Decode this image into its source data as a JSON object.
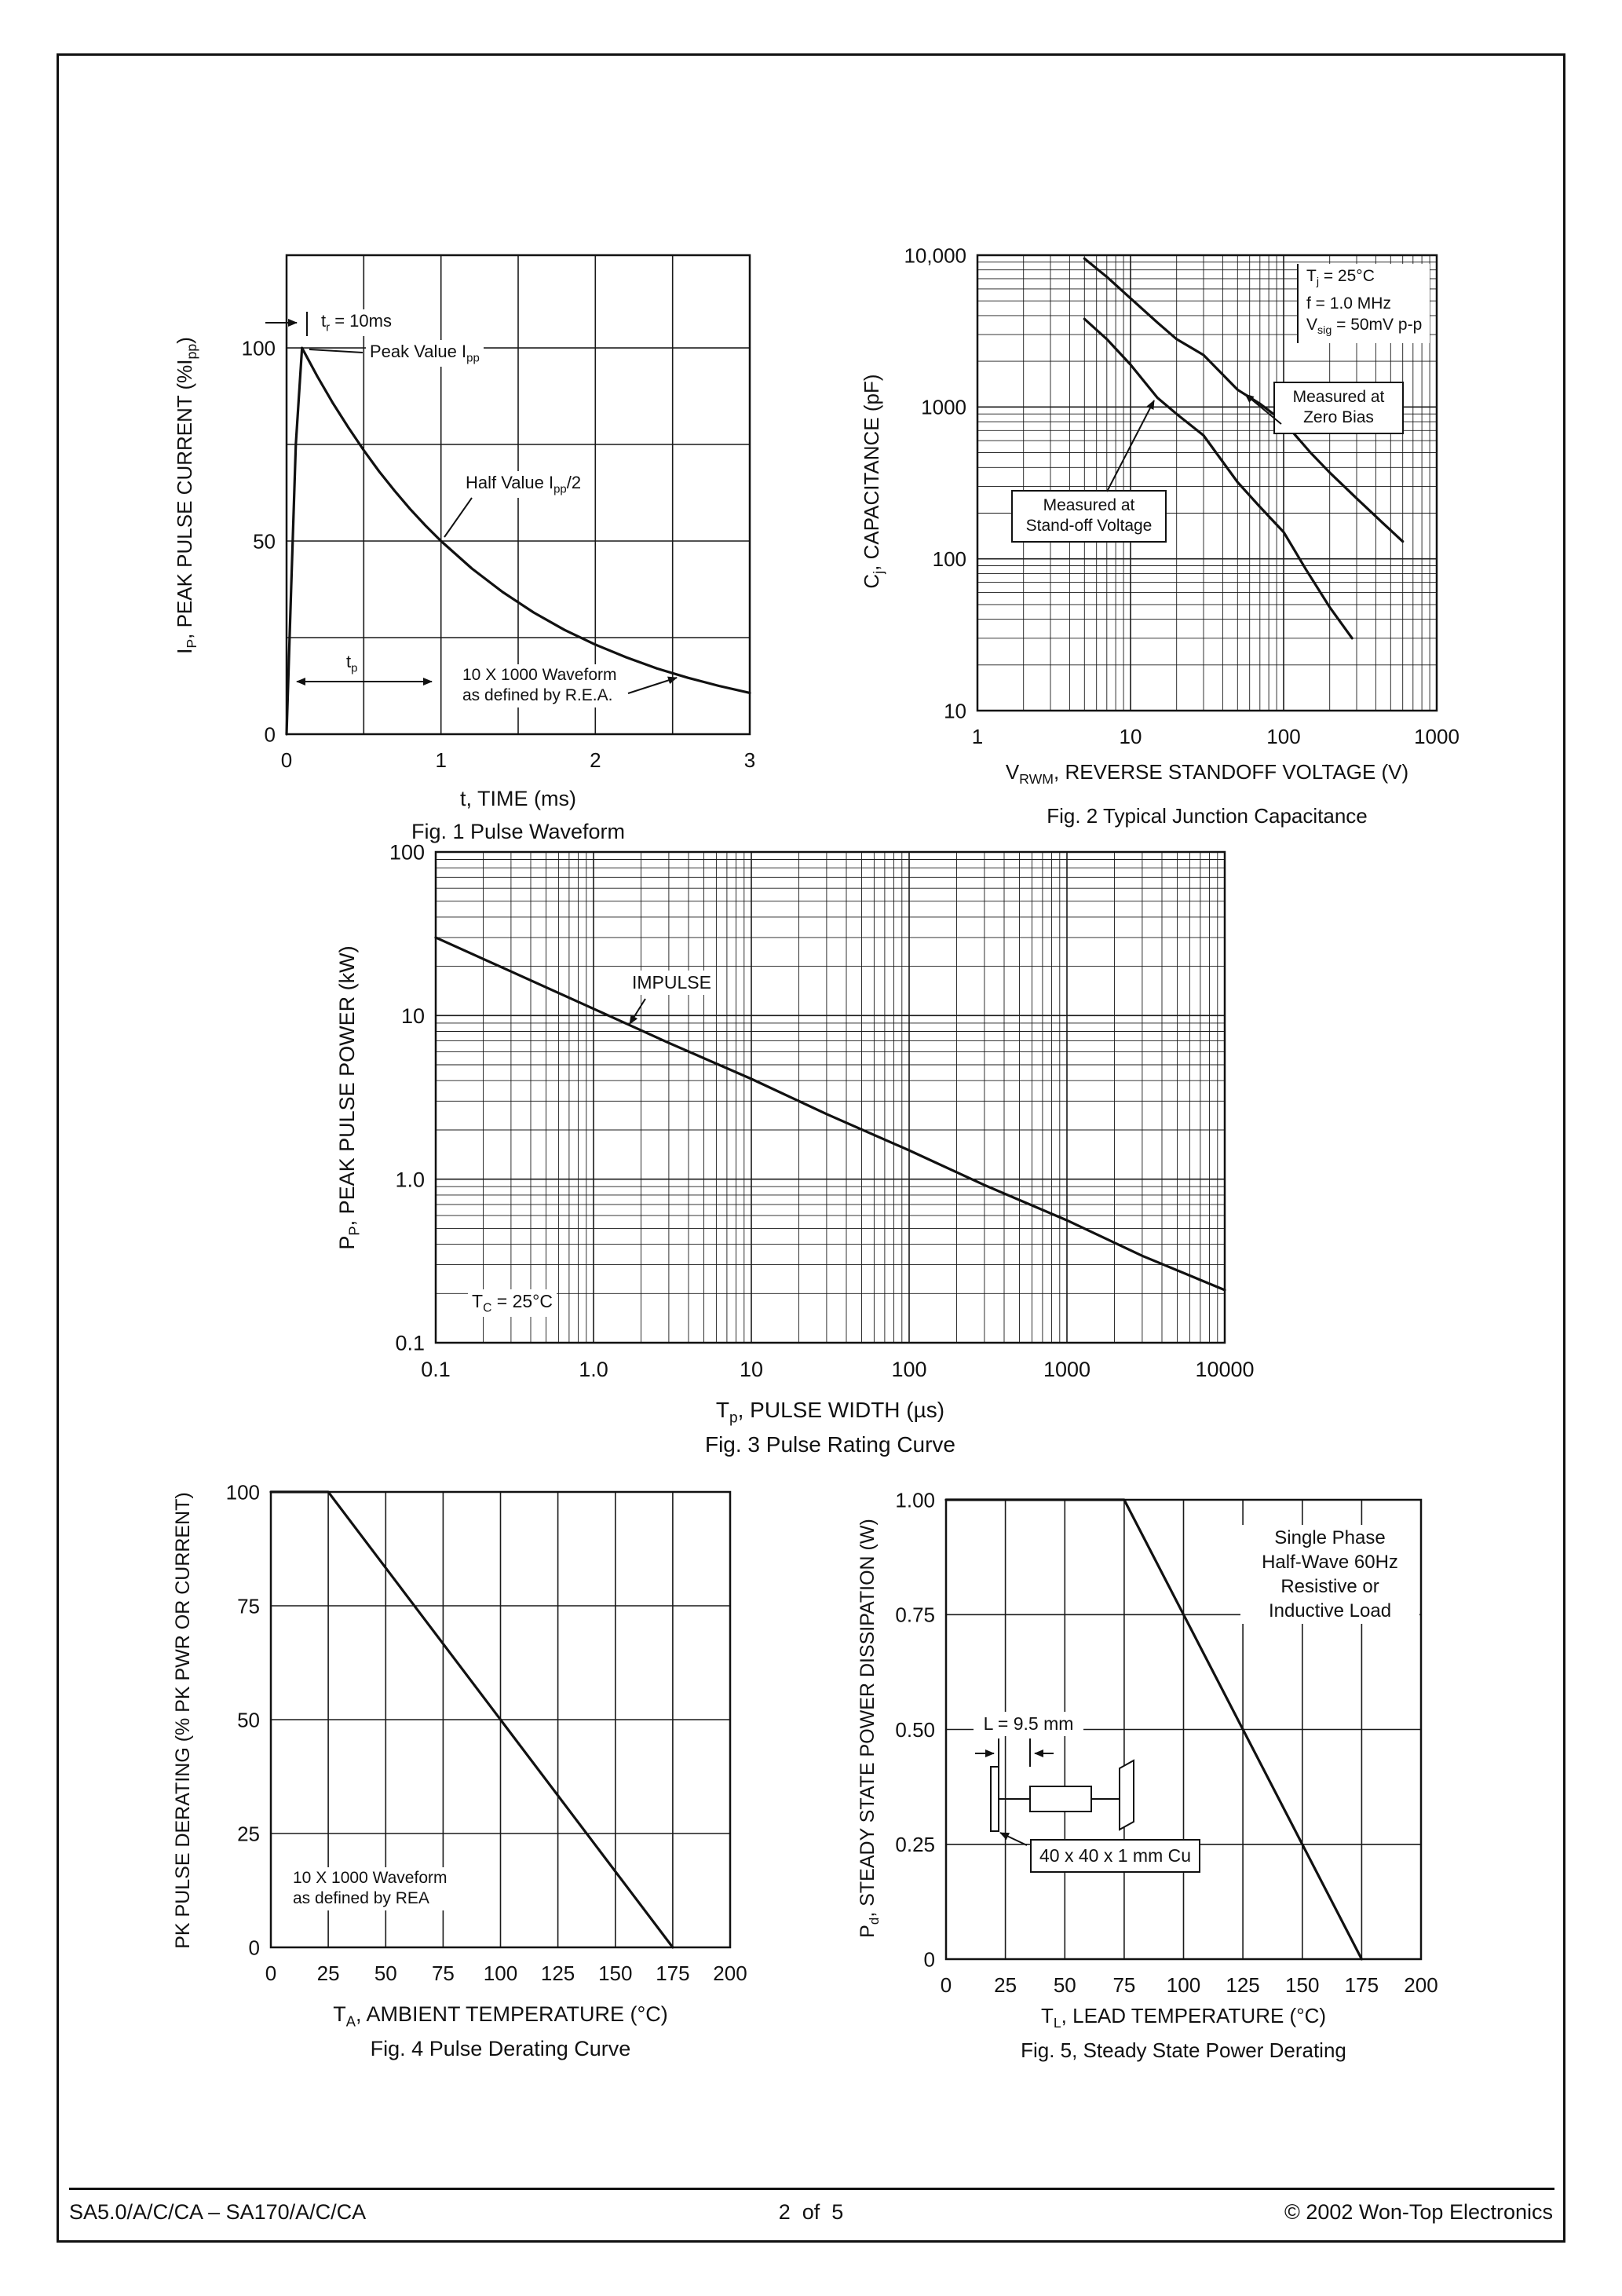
{
  "footer": {
    "left": "SA5.0/A/C/CA – SA170/A/C/CA",
    "center": "2  of  5",
    "right": "© 2002 Won-Top Electronics"
  },
  "chart_data": [
    {
      "id": "pulse-waveform",
      "type": "line",
      "title": "Fig. 1  Pulse Waveform",
      "xlabel": "t, TIME (ms)",
      "ylabel": "I_{P}, PEAK PULSE CURRENT (%I_{pp})",
      "xscale": "linear",
      "yscale": "linear",
      "xlim": [
        0,
        3
      ],
      "ylim": [
        0,
        124
      ],
      "grid": true,
      "legend": "none",
      "xticks": [
        {
          "v": 0,
          "t": "0"
        },
        {
          "v": 1,
          "t": "1"
        },
        {
          "v": 2,
          "t": "2"
        },
        {
          "v": 3,
          "t": "3"
        }
      ],
      "yticks": [
        {
          "v": 0,
          "t": "0"
        },
        {
          "v": 50,
          "t": "50"
        },
        {
          "v": 100,
          "t": "100"
        }
      ],
      "xgrid": [
        0.5,
        1,
        1.5,
        2,
        2.5
      ],
      "ygrid": [
        25,
        50,
        75,
        100
      ],
      "series": [
        {
          "name": "10x1000-pulse",
          "points": [
            [
              0,
              0
            ],
            [
              0.03,
              38
            ],
            [
              0.06,
              75
            ],
            [
              0.1,
              100
            ],
            [
              0.2,
              92.6
            ],
            [
              0.3,
              85.7
            ],
            [
              0.4,
              79.4
            ],
            [
              0.5,
              73.5
            ],
            [
              0.6,
              68
            ],
            [
              0.7,
              63
            ],
            [
              0.8,
              58.3
            ],
            [
              0.9,
              54
            ],
            [
              1,
              50
            ],
            [
              1.2,
              42.9
            ],
            [
              1.4,
              36.8
            ],
            [
              1.6,
              31.5
            ],
            [
              1.8,
              27
            ],
            [
              2,
              23.2
            ],
            [
              2.2,
              19.9
            ],
            [
              2.4,
              17
            ],
            [
              2.6,
              14.6
            ],
            [
              2.8,
              12.5
            ],
            [
              3,
              10.7
            ]
          ]
        }
      ],
      "annotations": {
        "tr": "t_{r} = 10ms",
        "peak": "Peak Value I_{pp}",
        "half": "Half Value I_{pp}/2",
        "tp": "t_{p}",
        "rea": "10 X 1000 Waveform\nas defined by R.E.A."
      }
    },
    {
      "id": "junction-capacitance",
      "type": "line",
      "title": "Fig. 2 Typical Junction Capacitance",
      "xlabel": "V_{RWM}, REVERSE STANDOFF VOLTAGE (V)",
      "ylabel": "C_{j}, CAPACITANCE (pF)",
      "xscale": "log",
      "yscale": "log",
      "xlim": [
        1,
        1000
      ],
      "ylim": [
        10,
        10000
      ],
      "grid": true,
      "legend": "inline-callouts",
      "xticks": [
        {
          "v": 1,
          "t": "1"
        },
        {
          "v": 10,
          "t": "10"
        },
        {
          "v": 100,
          "t": "100"
        },
        {
          "v": 1000,
          "t": "1000"
        }
      ],
      "yticks": [
        {
          "v": 10,
          "t": "10"
        },
        {
          "v": 100,
          "t": "100"
        },
        {
          "v": 1000,
          "t": "1000"
        },
        {
          "v": 10000,
          "t": "10,000"
        }
      ],
      "series": [
        {
          "name": "measured-at-zero-bias",
          "points": [
            [
              5,
              9500
            ],
            [
              7,
              7200
            ],
            [
              10,
              5200
            ],
            [
              15,
              3600
            ],
            [
              20,
              2800
            ],
            [
              30,
              2200
            ],
            [
              50,
              1300
            ],
            [
              70,
              1050
            ],
            [
              100,
              800
            ],
            [
              150,
              500
            ],
            [
              200,
              370
            ],
            [
              300,
              250
            ],
            [
              450,
              170
            ],
            [
              600,
              130
            ]
          ]
        },
        {
          "name": "measured-at-standoff-voltage",
          "points": [
            [
              5,
              3800
            ],
            [
              7,
              2800
            ],
            [
              10,
              1900
            ],
            [
              15,
              1150
            ],
            [
              20,
              900
            ],
            [
              30,
              650
            ],
            [
              50,
              320
            ],
            [
              70,
              220
            ],
            [
              100,
              150
            ],
            [
              140,
              85
            ],
            [
              200,
              48
            ],
            [
              280,
              30
            ]
          ]
        }
      ],
      "conditions": [
        "T_{j} = 25°C",
        "f = 1.0 MHz",
        "V_{sig} = 50mV p-p"
      ],
      "annotations": {
        "zero_bias": "Measured at\nZero Bias",
        "standoff": "Measured at\nStand-off Voltage"
      }
    },
    {
      "id": "pulse-rating",
      "type": "line",
      "title": "Fig. 3 Pulse Rating Curve",
      "xlabel": "T_{p}, PULSE WIDTH (µs)",
      "ylabel": "P_{P}, PEAK PULSE POWER (kW)",
      "xscale": "log",
      "yscale": "log",
      "xlim": [
        0.1,
        10000
      ],
      "ylim": [
        0.1,
        100
      ],
      "grid": true,
      "legend": "none",
      "xticks": [
        {
          "v": 0.1,
          "t": "0.1"
        },
        {
          "v": 1,
          "t": "1.0"
        },
        {
          "v": 10,
          "t": "10"
        },
        {
          "v": 100,
          "t": "100"
        },
        {
          "v": 1000,
          "t": "1000"
        },
        {
          "v": 10000,
          "t": "10000"
        }
      ],
      "yticks": [
        {
          "v": 0.1,
          "t": "0.1"
        },
        {
          "v": 1,
          "t": "1.0"
        },
        {
          "v": 10,
          "t": "10"
        },
        {
          "v": 100,
          "t": "100"
        }
      ],
      "series": [
        {
          "name": "impulse",
          "points": [
            [
              0.1,
              30
            ],
            [
              0.3,
              18.6
            ],
            [
              1,
              11
            ],
            [
              3,
              6.8
            ],
            [
              10,
              4.1
            ],
            [
              30,
              2.5
            ],
            [
              100,
              1.5
            ],
            [
              300,
              0.92
            ],
            [
              1000,
              0.56
            ],
            [
              3000,
              0.34
            ],
            [
              10000,
              0.21
            ]
          ]
        }
      ],
      "annotations": {
        "impulse": "IMPULSE",
        "tc": "T_{C} = 25°C"
      }
    },
    {
      "id": "pulse-derating",
      "type": "line",
      "title": "Fig. 4  Pulse Derating Curve",
      "xlabel": "T_{A}, AMBIENT TEMPERATURE (°C)",
      "ylabel": "PK PULSE DERATING (% PK PWR OR CURRENT)",
      "xscale": "linear",
      "yscale": "linear",
      "xlim": [
        0,
        200
      ],
      "ylim": [
        0,
        100
      ],
      "grid": true,
      "legend": "none",
      "xticks": [
        {
          "v": 0,
          "t": "0"
        },
        {
          "v": 25,
          "t": "25"
        },
        {
          "v": 50,
          "t": "50"
        },
        {
          "v": 75,
          "t": "75"
        },
        {
          "v": 100,
          "t": "100"
        },
        {
          "v": 125,
          "t": "125"
        },
        {
          "v": 150,
          "t": "150"
        },
        {
          "v": 175,
          "t": "175"
        },
        {
          "v": 200,
          "t": "200"
        }
      ],
      "yticks": [
        {
          "v": 0,
          "t": "0"
        },
        {
          "v": 25,
          "t": "25"
        },
        {
          "v": 50,
          "t": "50"
        },
        {
          "v": 75,
          "t": "75"
        },
        {
          "v": 100,
          "t": "100"
        }
      ],
      "xgrid": [
        25,
        50,
        75,
        100,
        125,
        150,
        175
      ],
      "ygrid": [
        25,
        50,
        75
      ],
      "series": [
        {
          "name": "peak-pulse-derating",
          "points": [
            [
              0,
              100
            ],
            [
              25,
              100
            ],
            [
              175,
              0
            ]
          ]
        }
      ],
      "annotations": {
        "rea": "10 X 1000 Waveform\nas defined by REA"
      }
    },
    {
      "id": "steady-state-derating",
      "type": "line",
      "title": "Fig. 5, Steady State Power Derating",
      "xlabel": "T_{L}, LEAD TEMPERATURE (°C)",
      "ylabel": "P_{d}, STEADY STATE POWER DISSIPATION (W)",
      "xscale": "linear",
      "yscale": "linear",
      "xlim": [
        0,
        200
      ],
      "ylim": [
        0,
        1
      ],
      "grid": true,
      "legend": "none",
      "xticks": [
        {
          "v": 0,
          "t": "0"
        },
        {
          "v": 25,
          "t": "25"
        },
        {
          "v": 50,
          "t": "50"
        },
        {
          "v": 75,
          "t": "75"
        },
        {
          "v": 100,
          "t": "100"
        },
        {
          "v": 125,
          "t": "125"
        },
        {
          "v": 150,
          "t": "150"
        },
        {
          "v": 175,
          "t": "175"
        },
        {
          "v": 200,
          "t": "200"
        }
      ],
      "yticks": [
        {
          "v": 0,
          "t": "0"
        },
        {
          "v": 0.25,
          "t": "0.25"
        },
        {
          "v": 0.5,
          "t": "0.50"
        },
        {
          "v": 0.75,
          "t": "0.75"
        },
        {
          "v": 1,
          "t": "1.00"
        }
      ],
      "xgrid": [
        25,
        50,
        75,
        100,
        125,
        150,
        175
      ],
      "ygrid": [
        0.25,
        0.5,
        0.75
      ],
      "series": [
        {
          "name": "steady-state-power-derating",
          "points": [
            [
              0,
              1
            ],
            [
              75,
              1
            ],
            [
              175,
              0
            ]
          ]
        }
      ],
      "annotations": {
        "load": "Single Phase\nHalf-Wave 60Hz\nResistive or\nInductive Load",
        "lead_length": "L = 9.5 mm",
        "cu_pad": "40 x 40 x 1 mm Cu"
      }
    }
  ]
}
